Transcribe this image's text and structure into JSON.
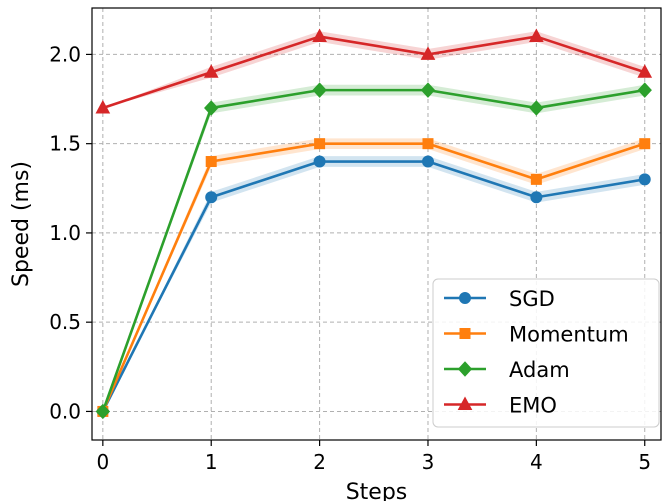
{
  "chart_data": {
    "type": "line",
    "x": [
      0,
      1,
      2,
      3,
      4,
      5
    ],
    "xlabel": "Steps",
    "ylabel": "Speed (ms)",
    "xlim": [
      -0.1,
      5.15
    ],
    "ylim": [
      -0.16,
      2.26
    ],
    "xticks": [
      "0",
      "1",
      "2",
      "3",
      "4",
      "5"
    ],
    "yticks": [
      "0.0",
      "0.5",
      "1.0",
      "1.5",
      "2.0"
    ],
    "grid": true,
    "legend_position": "lower-right",
    "band_halfwidth": 0.03,
    "series": [
      {
        "name": "SGD",
        "values": [
          0.0,
          1.2,
          1.4,
          1.4,
          1.2,
          1.3
        ],
        "color": "#1f77b4",
        "marker": "circle"
      },
      {
        "name": "Momentum",
        "values": [
          0.0,
          1.4,
          1.5,
          1.5,
          1.3,
          1.5
        ],
        "color": "#ff7f0e",
        "marker": "square"
      },
      {
        "name": "Adam",
        "values": [
          0.0,
          1.7,
          1.8,
          1.8,
          1.7,
          1.8
        ],
        "color": "#2ca02c",
        "marker": "diamond"
      },
      {
        "name": "EMO",
        "values": [
          1.7,
          1.9,
          2.1,
          2.0,
          2.1,
          1.9
        ],
        "color": "#d62728",
        "marker": "triangle"
      }
    ]
  }
}
